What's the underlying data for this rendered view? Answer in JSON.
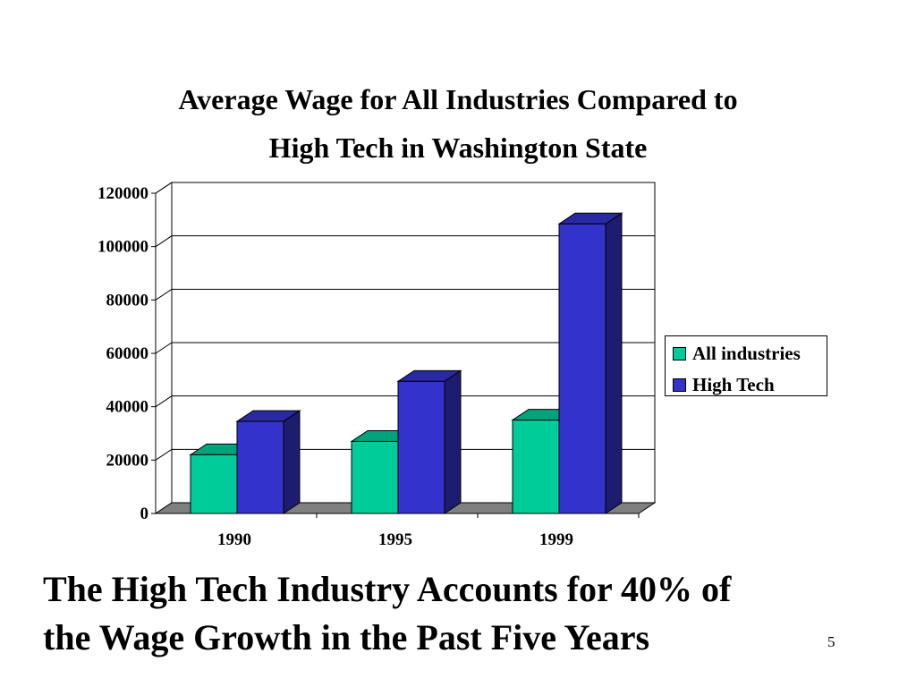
{
  "slide": {
    "title_line1": "Average Wage for All Industries Compared to",
    "title_line2": "High Tech in Washington State",
    "caption_line1": "The High Tech Industry Accounts for 40% of",
    "caption_line2": "the Wage Growth in the Past Five Years",
    "slide_number": "5"
  },
  "chart_data": {
    "type": "bar",
    "title": "",
    "xlabel": "",
    "ylabel": "",
    "categories": [
      "1990",
      "1995",
      "1999"
    ],
    "series": [
      {
        "name": "All industries",
        "values": [
          22000,
          27000,
          35000
        ],
        "color": "#00CC99"
      },
      {
        "name": "High Tech",
        "values": [
          34500,
          49500,
          108500
        ],
        "color": "#3333CC"
      }
    ],
    "ylim": [
      0,
      120000
    ],
    "yticks": [
      "0",
      "20000",
      "40000",
      "60000",
      "80000",
      "100000",
      "120000"
    ],
    "grid": true,
    "legend_position": "right",
    "style": "3d"
  }
}
